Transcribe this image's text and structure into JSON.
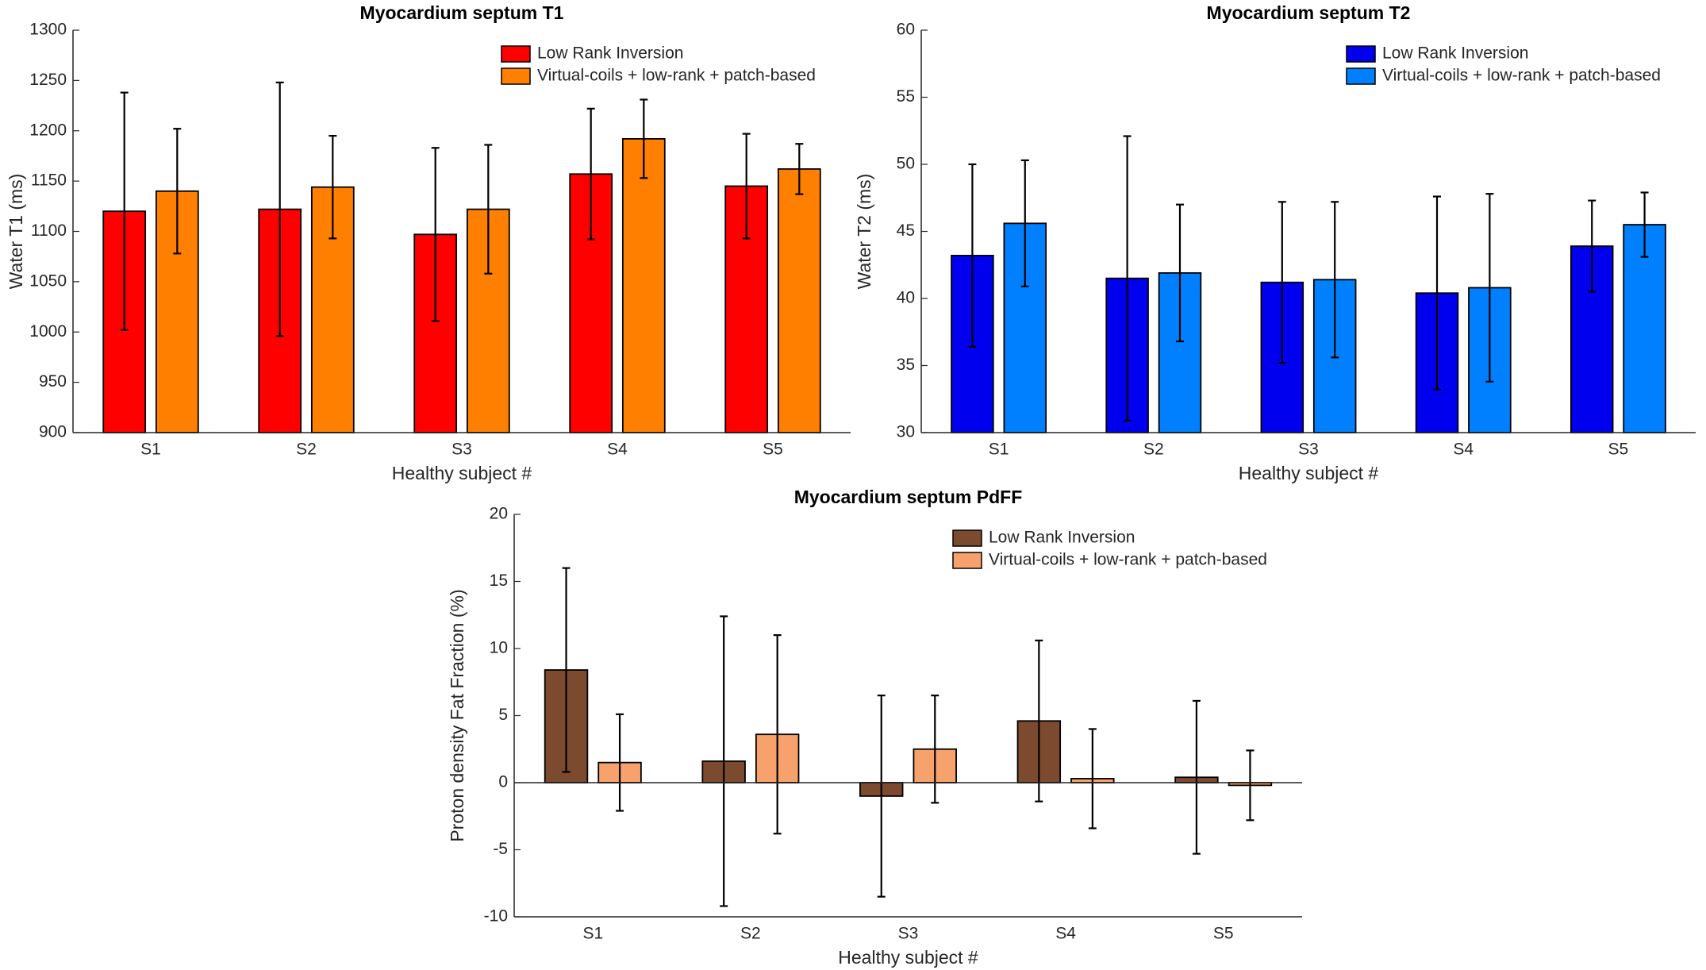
{
  "chart_data": [
    {
      "type": "bar",
      "title": "Myocardium septum T1",
      "x_label": "Healthy subject #",
      "y_label": "Water T1 (ms)",
      "categories": [
        "S1",
        "S2",
        "S3",
        "S4",
        "S5"
      ],
      "series": [
        {
          "name": "Low Rank Inversion",
          "color": "#ff0000",
          "values": [
            1120,
            1122,
            1097,
            1157,
            1145
          ],
          "errors": [
            118,
            126,
            86,
            65,
            52
          ]
        },
        {
          "name": "Virtual-coils + low-rank + patch-based",
          "color": "#ff8000",
          "values": [
            1140,
            1144,
            1122,
            1192,
            1162
          ],
          "errors": [
            62,
            51,
            64,
            39,
            25
          ]
        }
      ],
      "ylim": [
        900,
        1300
      ],
      "yticks": [
        900,
        950,
        1000,
        1050,
        1100,
        1150,
        1200,
        1250,
        1300
      ],
      "legend": "upper right"
    },
    {
      "type": "bar",
      "title": "Myocardium septum T2",
      "x_label": "Healthy subject #",
      "y_label": "Water T2 (ms)",
      "categories": [
        "S1",
        "S2",
        "S3",
        "S4",
        "S5"
      ],
      "series": [
        {
          "name": "Low Rank Inversion",
          "color": "#0000ee",
          "values": [
            43.2,
            41.5,
            41.2,
            40.4,
            43.9
          ],
          "errors": [
            6.8,
            10.6,
            6,
            7.2,
            3.4
          ]
        },
        {
          "name": "Virtual-coils + low-rank + patch-based",
          "color": "#0080ff",
          "values": [
            45.6,
            41.9,
            41.4,
            40.8,
            45.5
          ],
          "errors": [
            4.7,
            5.1,
            5.8,
            7,
            2.4
          ]
        }
      ],
      "ylim": [
        30,
        60
      ],
      "yticks": [
        30,
        35,
        40,
        45,
        50,
        55,
        60
      ],
      "legend": "upper right"
    },
    {
      "type": "bar",
      "title": "Myocardium septum PdFF",
      "x_label": "Healthy subject #",
      "y_label": "Proton density Fat Fraction (%)",
      "categories": [
        "S1",
        "S2",
        "S3",
        "S4",
        "S5"
      ],
      "series": [
        {
          "name": "Low Rank Inversion",
          "color": "#7b4a2f",
          "values": [
            8.4,
            1.6,
            -1.0,
            4.6,
            0.4
          ],
          "errors": [
            7.6,
            10.8,
            7.5,
            6,
            5.7
          ]
        },
        {
          "name": "Virtual-coils + low-rank + patch-based",
          "color": "#f7a26c",
          "values": [
            1.5,
            3.6,
            2.5,
            0.3,
            -0.2
          ],
          "errors": [
            3.6,
            7.4,
            4,
            3.7,
            2.6
          ]
        }
      ],
      "ylim": [
        -10,
        20
      ],
      "yticks": [
        -10,
        -5,
        0,
        5,
        10,
        15,
        20
      ],
      "legend": "upper right"
    }
  ]
}
